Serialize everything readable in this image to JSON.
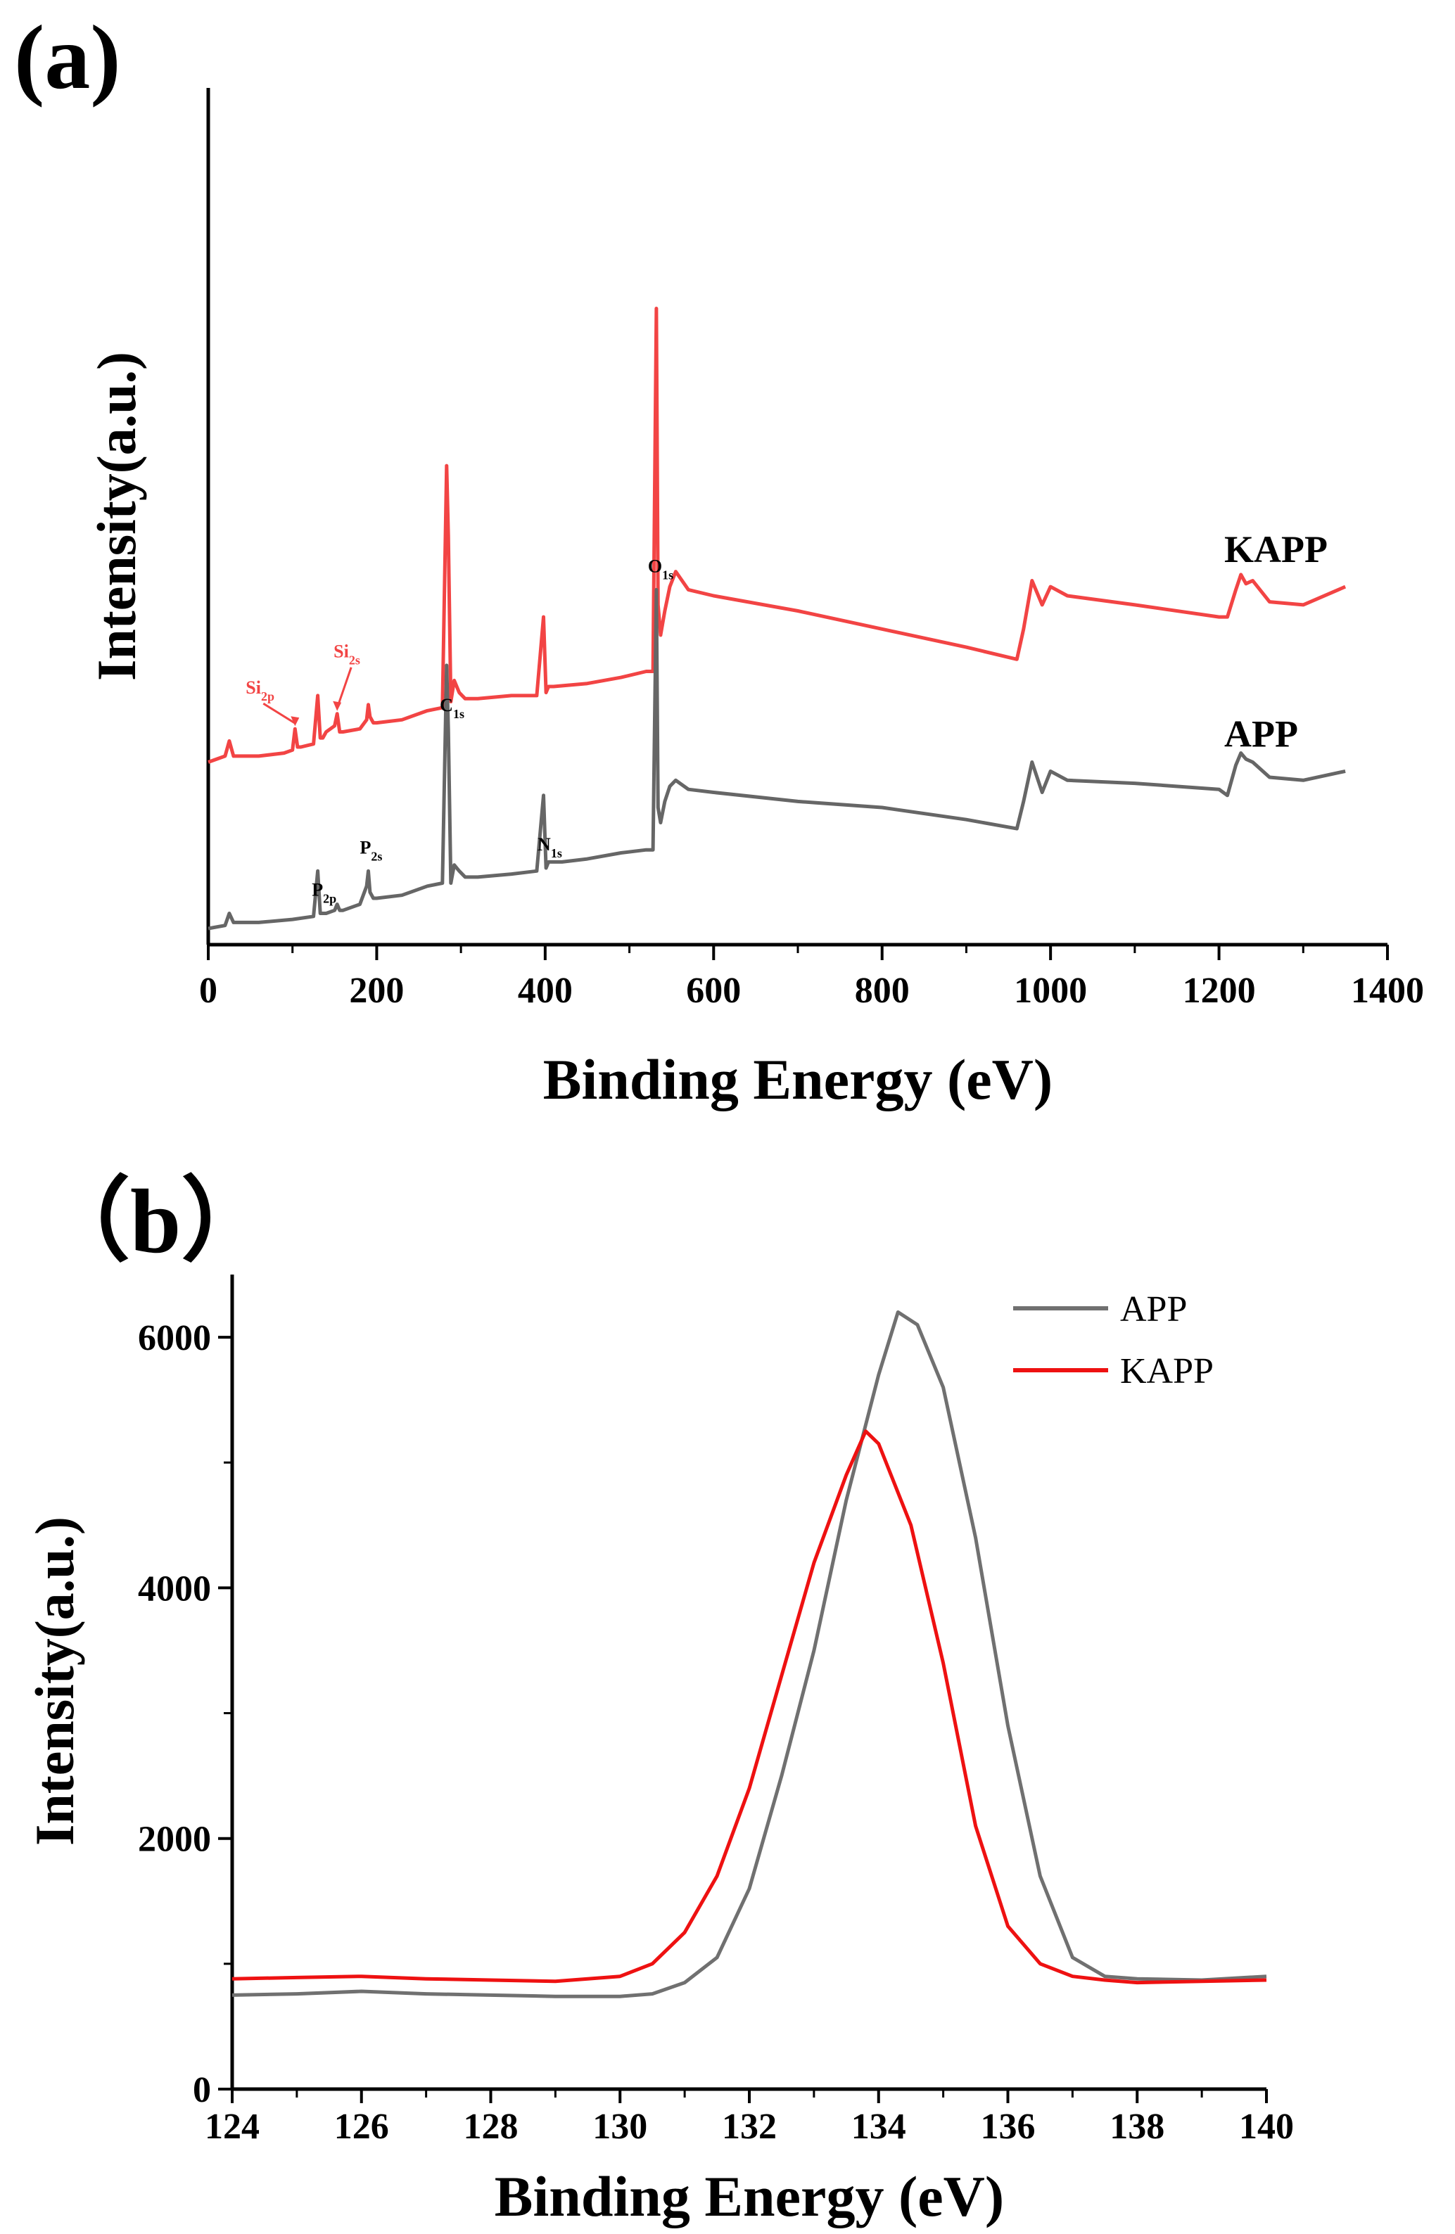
{
  "panel_a_label": "(a)",
  "panel_b_label": "（b）",
  "chart_data": [
    {
      "type": "line",
      "panel": "a",
      "xlabel": "Binding Energy (eV)",
      "ylabel": "Intensity(a.u.)",
      "xlim": [
        0,
        1400
      ],
      "xticks": [
        "0",
        "200",
        "400",
        "600",
        "800",
        "1000",
        "1200",
        "1400"
      ],
      "yticks_shown": false,
      "colors": {
        "APP": "#666666",
        "KAPP": "#f24444"
      },
      "series": [
        {
          "name": "KAPP",
          "label": "KAPP",
          "offset": 0.55,
          "x": [
            0,
            20,
            25,
            30,
            60,
            90,
            100,
            103,
            106,
            110,
            125,
            130,
            133,
            136,
            140,
            150,
            153,
            156,
            160,
            180,
            188,
            190,
            192,
            196,
            200,
            230,
            260,
            278,
            283,
            285,
            288,
            292,
            298,
            305,
            320,
            360,
            390,
            398,
            401,
            404,
            410,
            450,
            490,
            520,
            528,
            532,
            534,
            537,
            542,
            548,
            555,
            570,
            600,
            700,
            800,
            900,
            960,
            968,
            978,
            990,
            1000,
            1020,
            1100,
            1200,
            1210,
            1220,
            1226,
            1232,
            1240,
            1260,
            1300,
            1350
          ],
          "y": [
            0,
            0.02,
            0.07,
            0.02,
            0.02,
            0.03,
            0.04,
            0.11,
            0.05,
            0.05,
            0.06,
            0.22,
            0.08,
            0.08,
            0.1,
            0.12,
            0.16,
            0.1,
            0.1,
            0.11,
            0.14,
            0.19,
            0.15,
            0.13,
            0.13,
            0.14,
            0.17,
            0.18,
            0.98,
            0.75,
            0.2,
            0.27,
            0.23,
            0.21,
            0.21,
            0.22,
            0.22,
            0.48,
            0.23,
            0.25,
            0.25,
            0.26,
            0.28,
            0.3,
            0.3,
            1.5,
            0.52,
            0.42,
            0.5,
            0.58,
            0.63,
            0.57,
            0.55,
            0.5,
            0.44,
            0.38,
            0.34,
            0.44,
            0.6,
            0.52,
            0.58,
            0.55,
            0.52,
            0.48,
            0.48,
            0.57,
            0.62,
            0.59,
            0.6,
            0.53,
            0.52,
            0.58
          ]
        },
        {
          "name": "APP",
          "label": "APP",
          "offset": 0,
          "x": [
            0,
            20,
            25,
            30,
            60,
            100,
            125,
            130,
            133,
            136,
            140,
            150,
            153,
            156,
            160,
            180,
            188,
            190,
            192,
            196,
            200,
            230,
            260,
            278,
            283,
            285,
            288,
            292,
            298,
            305,
            320,
            360,
            390,
            398,
            401,
            404,
            410,
            420,
            450,
            490,
            520,
            528,
            532,
            534,
            537,
            542,
            548,
            555,
            570,
            600,
            700,
            800,
            900,
            960,
            968,
            978,
            990,
            1000,
            1020,
            1100,
            1200,
            1210,
            1220,
            1226,
            1232,
            1240,
            1260,
            1300,
            1350
          ],
          "y": [
            0,
            0.01,
            0.05,
            0.02,
            0.02,
            0.03,
            0.04,
            0.19,
            0.05,
            0.05,
            0.05,
            0.06,
            0.08,
            0.06,
            0.06,
            0.08,
            0.14,
            0.19,
            0.12,
            0.1,
            0.1,
            0.11,
            0.14,
            0.15,
            0.87,
            0.66,
            0.15,
            0.21,
            0.19,
            0.17,
            0.17,
            0.18,
            0.19,
            0.44,
            0.2,
            0.22,
            0.22,
            0.22,
            0.23,
            0.25,
            0.26,
            0.26,
            1.12,
            0.4,
            0.35,
            0.42,
            0.47,
            0.49,
            0.46,
            0.45,
            0.42,
            0.4,
            0.36,
            0.33,
            0.42,
            0.55,
            0.45,
            0.52,
            0.49,
            0.48,
            0.46,
            0.44,
            0.54,
            0.58,
            0.56,
            0.55,
            0.5,
            0.49,
            0.52
          ]
        }
      ],
      "annotations": [
        {
          "id": "p2p",
          "main": "P",
          "sub": "2p",
          "x": 133,
          "series": "APP",
          "color": "#000000"
        },
        {
          "id": "p2s",
          "main": "P",
          "sub": "2s",
          "x": 190,
          "series": "APP",
          "color": "#000000"
        },
        {
          "id": "c1s",
          "main": "C",
          "sub": "1s",
          "x": 285,
          "series": "APP",
          "color": "#000000"
        },
        {
          "id": "n1s",
          "main": "N",
          "sub": "1s",
          "x": 401,
          "series": "APP",
          "color": "#000000"
        },
        {
          "id": "o1s",
          "main": "O",
          "sub": "1s",
          "x": 532,
          "series": "APP",
          "color": "#000000"
        },
        {
          "id": "si2p",
          "main": "Si",
          "sub": "2p",
          "x": 103,
          "series": "KAPP",
          "color": "#f24444"
        },
        {
          "id": "si2s",
          "main": "Si",
          "sub": "2s",
          "x": 153,
          "series": "KAPP",
          "color": "#f24444"
        }
      ]
    },
    {
      "type": "line",
      "panel": "b",
      "xlabel": "Binding Energy (eV)",
      "ylabel": "Intensity(a.u.)",
      "xlim": [
        124,
        140
      ],
      "ylim": [
        0,
        6500
      ],
      "xticks": [
        "124",
        "126",
        "128",
        "130",
        "132",
        "134",
        "136",
        "138",
        "140"
      ],
      "yticks": [
        "0",
        "2000",
        "4000",
        "6000"
      ],
      "legend_position": "top-right",
      "colors": {
        "APP": "#707070",
        "KAPP": "#ee1111"
      },
      "series": [
        {
          "name": "APP",
          "label": "APP",
          "x": [
            124,
            125,
            126,
            127,
            128,
            129,
            130,
            130.5,
            131,
            131.5,
            132,
            132.5,
            133,
            133.5,
            134,
            134.3,
            134.6,
            135,
            135.5,
            136,
            136.5,
            137,
            137.5,
            138,
            139,
            140
          ],
          "y": [
            750,
            760,
            780,
            760,
            750,
            740,
            740,
            760,
            850,
            1050,
            1600,
            2500,
            3500,
            4700,
            5700,
            6200,
            6100,
            5600,
            4400,
            2900,
            1700,
            1050,
            900,
            880,
            870,
            900
          ]
        },
        {
          "name": "KAPP",
          "label": "KAPP",
          "x": [
            124,
            125,
            126,
            127,
            128,
            129,
            130,
            130.5,
            131,
            131.5,
            132,
            132.5,
            133,
            133.5,
            133.8,
            134,
            134.5,
            135,
            135.5,
            136,
            136.5,
            137,
            137.5,
            138,
            139,
            140
          ],
          "y": [
            880,
            890,
            900,
            880,
            870,
            860,
            900,
            1000,
            1250,
            1700,
            2400,
            3300,
            4200,
            4900,
            5250,
            5150,
            4500,
            3400,
            2100,
            1300,
            1000,
            900,
            870,
            850,
            860,
            870
          ]
        }
      ]
    }
  ]
}
